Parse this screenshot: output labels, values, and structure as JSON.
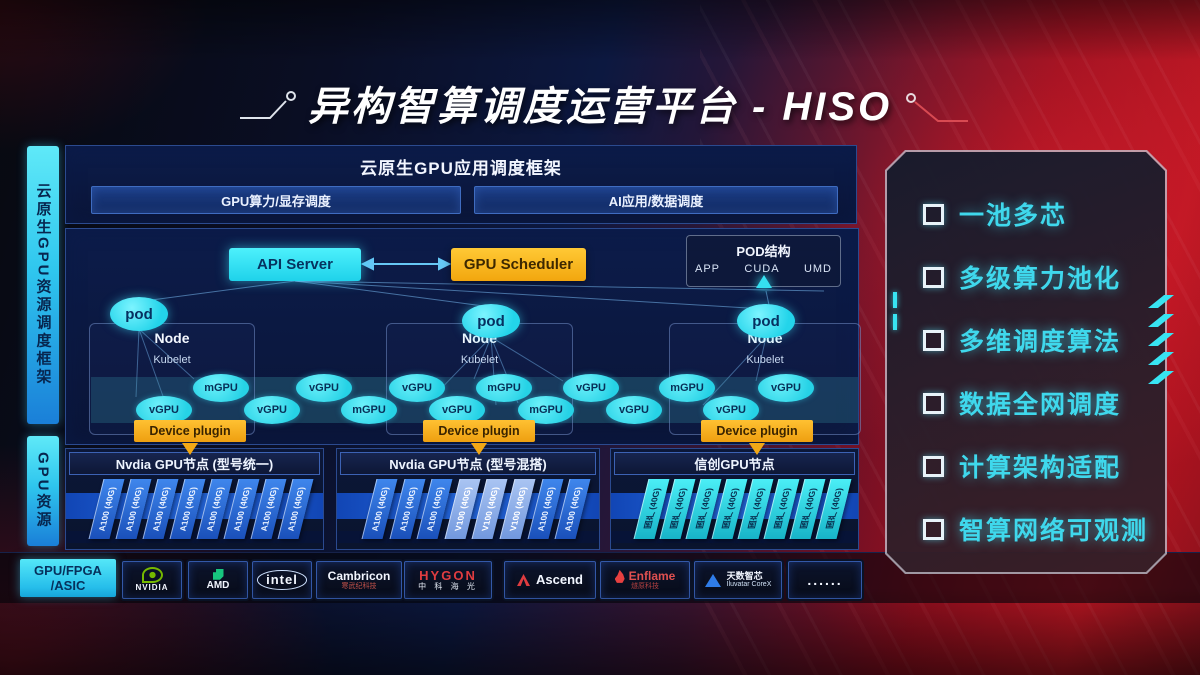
{
  "page": {
    "title": "异构智算调度运营平台 - HISO"
  },
  "sidebar": {
    "top": "云原生GPU资源调度框架",
    "bottom": "GPU资源"
  },
  "framework": {
    "title": "云原生GPU应用调度框架",
    "left_bar": "GPU算力/显存调度",
    "right_bar": "AI应用/数据调度"
  },
  "diagram": {
    "api_server": "API Server",
    "gpu_scheduler": "GPU Scheduler",
    "pod_struct": {
      "title": "POD结构",
      "items": [
        "APP",
        "CUDA",
        "UMD"
      ]
    },
    "nodes": [
      {
        "pod": "pod",
        "label": "Node",
        "agent": "Kubelet",
        "plugin": "Device plugin"
      },
      {
        "pod": "pod",
        "label": "Node",
        "agent": "Kubelet",
        "plugin": "Device plugin"
      },
      {
        "pod": "pod",
        "label": "Node",
        "agent": "Kubelet",
        "plugin": "Device plugin"
      }
    ],
    "band": [
      "vGPU",
      "mGPU",
      "vGPU",
      "vGPU",
      "mGPU",
      "vGPU",
      "vGPU",
      "mGPU",
      "mGPU",
      "vGPU",
      "vGPU",
      "mGPU",
      "vGPU",
      "vGPU"
    ]
  },
  "gpu_groups": [
    {
      "header": "Nvdia GPU节点 (型号统一)",
      "cards": [
        {
          "label": "A100 (40G)",
          "variant": "blue"
        },
        {
          "label": "A100 (40G)",
          "variant": "blue"
        },
        {
          "label": "A100 (40G)",
          "variant": "blue"
        },
        {
          "label": "A100 (40G)",
          "variant": "blue"
        },
        {
          "label": "A100 (40G)",
          "variant": "blue"
        },
        {
          "label": "A100 (40G)",
          "variant": "blue"
        },
        {
          "label": "A100 (40G)",
          "variant": "blue"
        },
        {
          "label": "A100 (40G)",
          "variant": "blue"
        }
      ]
    },
    {
      "header": "Nvdia GPU节点 (型号混搭)",
      "cards": [
        {
          "label": "A100 (40G)",
          "variant": "blue"
        },
        {
          "label": "A100 (40G)",
          "variant": "blue"
        },
        {
          "label": "A100 (40G)",
          "variant": "blue"
        },
        {
          "label": "V100 (40G)",
          "variant": "light"
        },
        {
          "label": "V100 (40G)",
          "variant": "light"
        },
        {
          "label": "V100 (40G)",
          "variant": "light"
        },
        {
          "label": "A100 (40G)",
          "variant": "blue"
        },
        {
          "label": "A100 (40G)",
          "variant": "blue"
        }
      ]
    },
    {
      "header": "信创GPU节点",
      "cards": [
        {
          "label": "国产 (40G)",
          "variant": "cyan"
        },
        {
          "label": "国产 (40G)",
          "variant": "cyan"
        },
        {
          "label": "国产 (40G)",
          "variant": "cyan"
        },
        {
          "label": "国产 (40G)",
          "variant": "cyan"
        },
        {
          "label": "国产 (40G)",
          "variant": "cyan"
        },
        {
          "label": "国产 (40G)",
          "variant": "cyan"
        },
        {
          "label": "国产 (40G)",
          "variant": "cyan"
        },
        {
          "label": "国产 (40G)",
          "variant": "cyan"
        }
      ]
    }
  ],
  "vendor_bar": {
    "label_line1": "GPU/FPGA",
    "label_line2": "/ASIC",
    "items": [
      {
        "id": "nvidia",
        "name": "NVIDIA"
      },
      {
        "id": "amd",
        "name": "AMD"
      },
      {
        "id": "intel",
        "name": "intel"
      },
      {
        "id": "cambricon",
        "name": "Cambricon",
        "sub": "寒武纪科技"
      },
      {
        "id": "hygon",
        "name": "HYGON",
        "sub": "中 科 海 光"
      },
      {
        "id": "ascend",
        "name": "Ascend"
      },
      {
        "id": "enflame",
        "name": "Enflame",
        "sub": "燧原科技"
      },
      {
        "id": "iluvatar",
        "name": "天数智芯",
        "sub": "Iluvatar CoreX"
      },
      {
        "id": "more",
        "name": "......"
      }
    ]
  },
  "features": [
    "一池多芯",
    "多级算力池化",
    "多维调度算法",
    "数据全网调度",
    "计算架构适配",
    "智算网络可观测"
  ],
  "colors": {
    "cyan": "#35e0f0",
    "yellow": "#f2a816",
    "panel_border": "#2b4a8f",
    "card_blue": "#2a6ade",
    "card_light": "#93b6ee",
    "card_cyan": "#3ce4ee",
    "feature_text": "#3fd8ec",
    "red": "#c01424"
  }
}
